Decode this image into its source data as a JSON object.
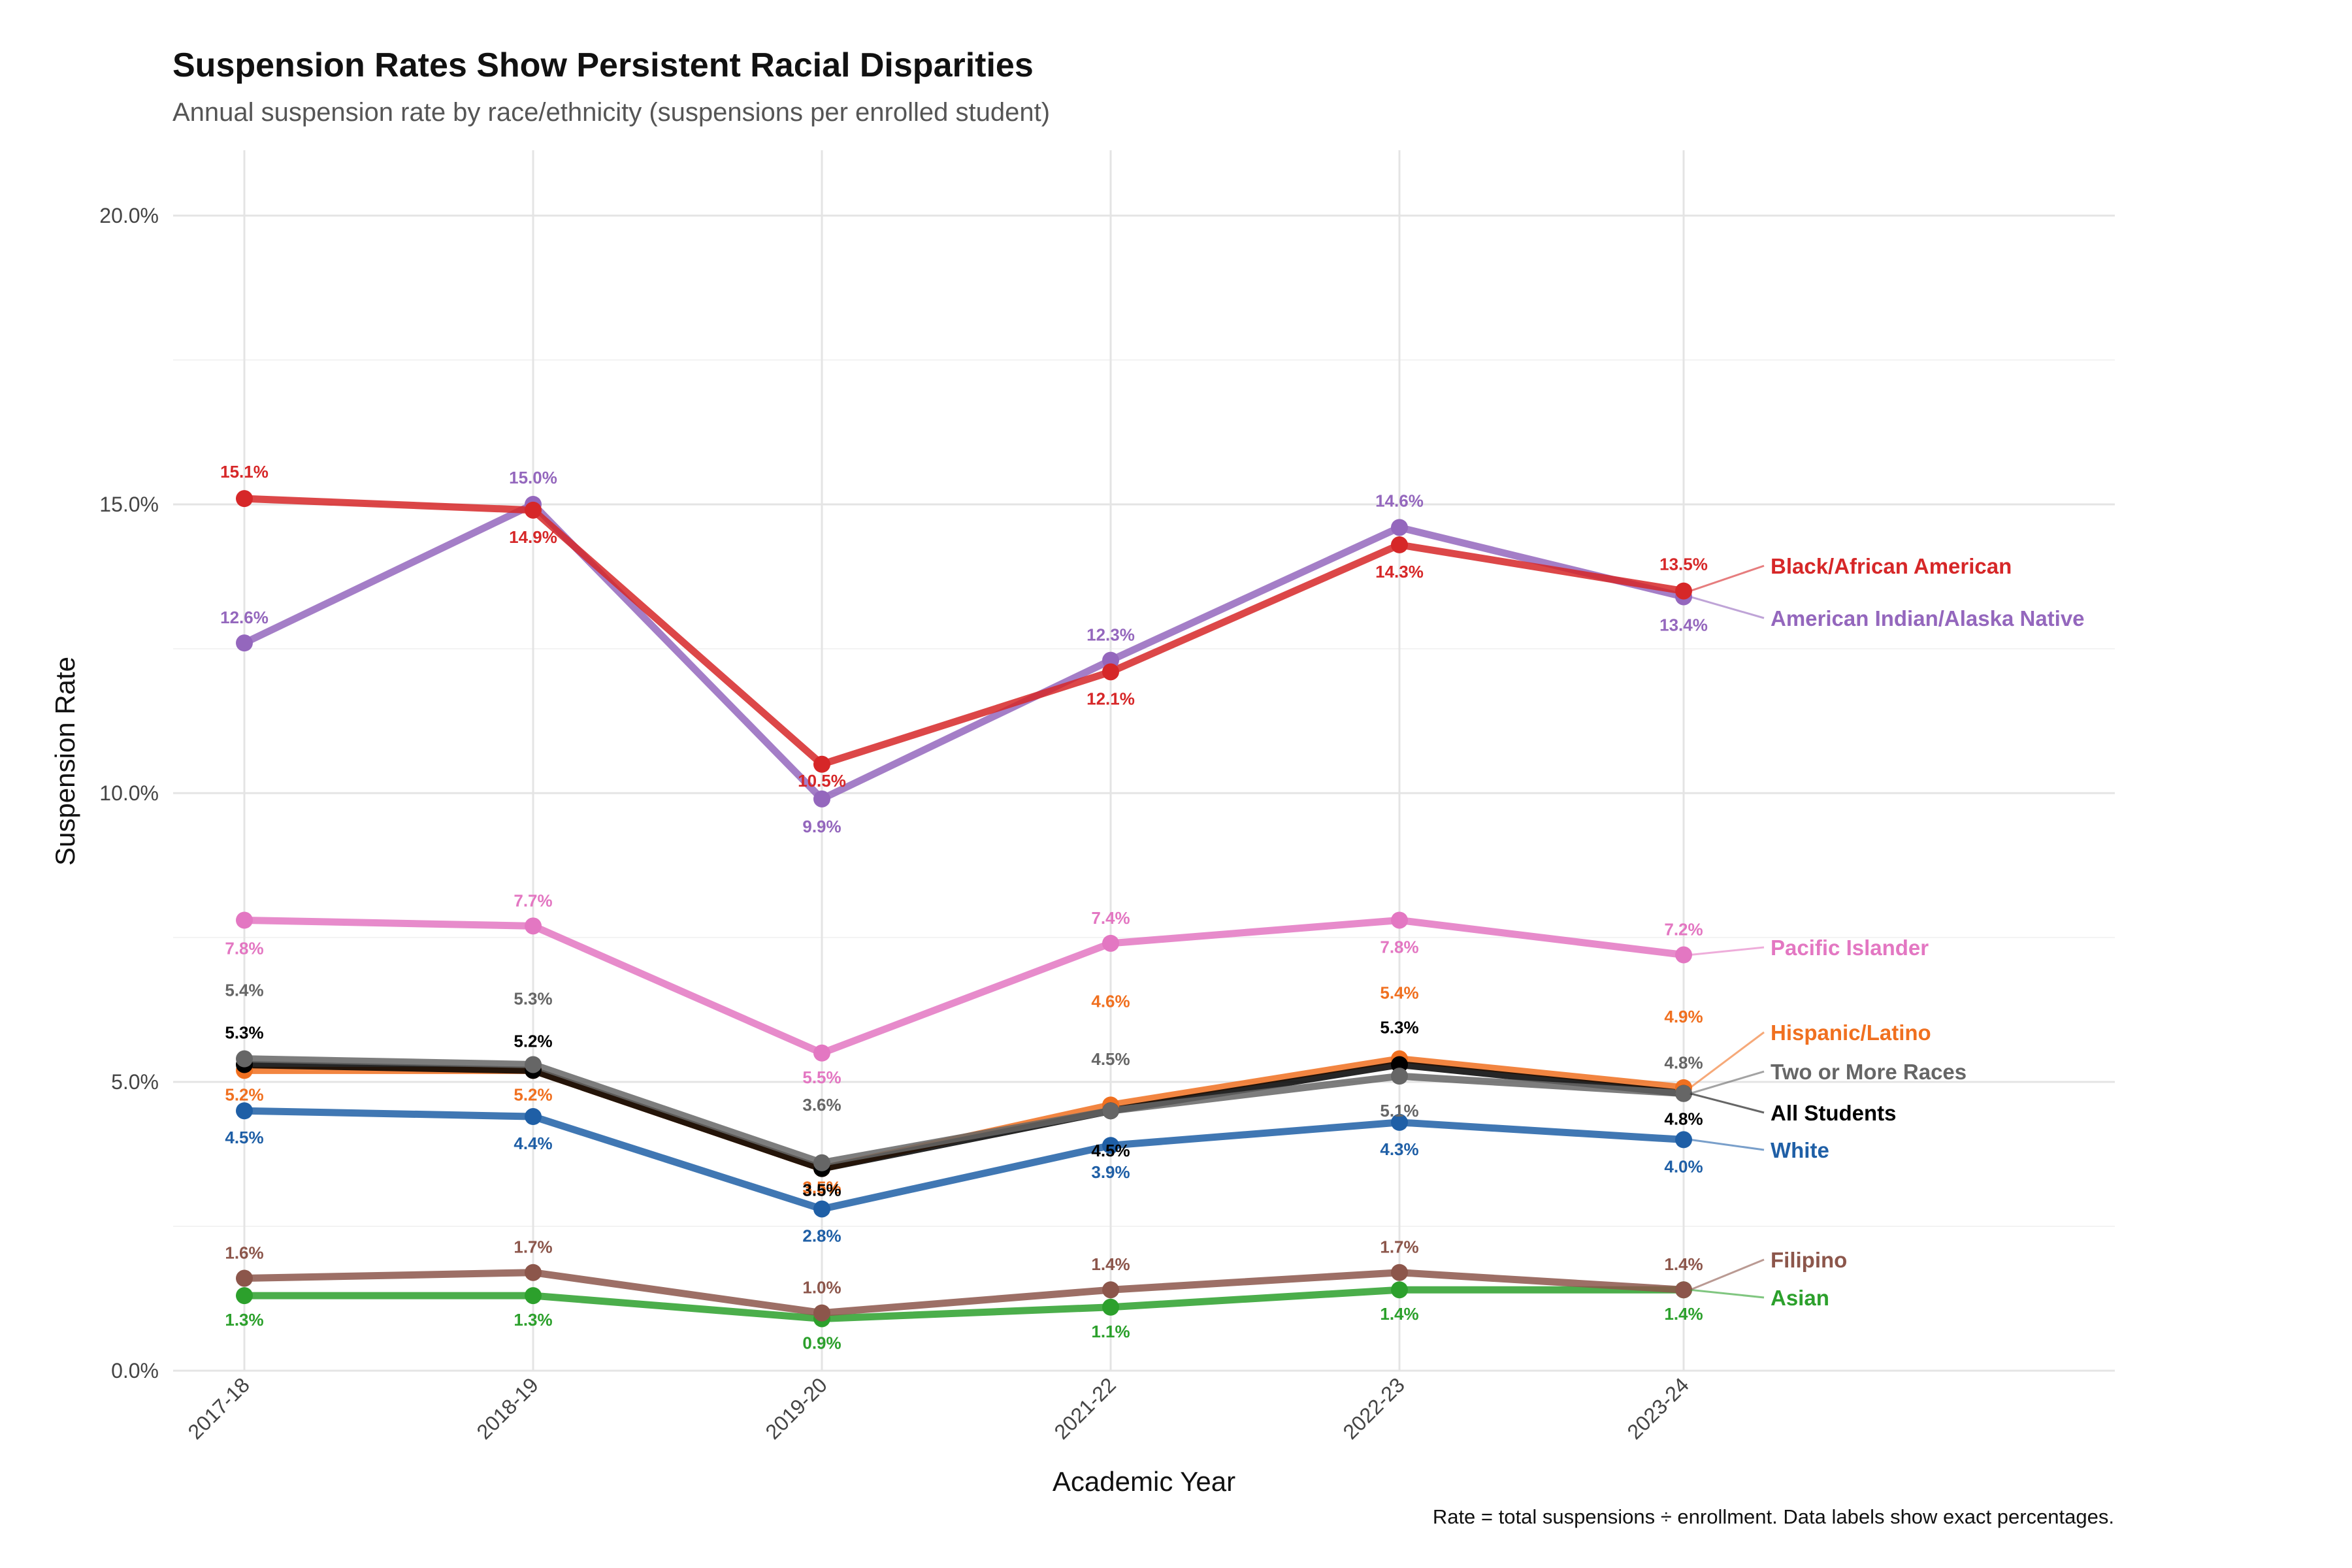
{
  "title": "Suspension Rates Show Persistent Racial Disparities",
  "subtitle": "Annual suspension rate by race/ethnicity (suspensions per enrolled student)",
  "caption": "Rate = total suspensions ÷ enrollment. Data labels show exact percentages.",
  "chart_data": {
    "type": "line",
    "xlabel": "Academic Year",
    "ylabel": "Suspension Rate",
    "categories": [
      "2017-18",
      "2018-19",
      "2019-20",
      "2021-22",
      "2022-23",
      "2023-24"
    ],
    "ylim": [
      0,
      20
    ],
    "yticks": [
      0,
      5,
      10,
      15,
      20
    ],
    "ytick_labels": [
      "0.0%",
      "5.0%",
      "10.0%",
      "15.0%",
      "20.0%"
    ],
    "grid": true,
    "legend": "direct labels at right end of lines",
    "series": [
      {
        "name": "Asian",
        "color": "#2CA02C",
        "values": [
          1.3,
          1.3,
          0.9,
          1.1,
          1.4,
          1.4
        ],
        "labels": [
          "1.3%",
          "1.3%",
          "0.9%",
          "1.1%",
          "1.4%",
          "1.4%"
        ]
      },
      {
        "name": "Filipino",
        "color": "#8C564B",
        "values": [
          1.6,
          1.7,
          1.0,
          1.4,
          1.7,
          1.4
        ],
        "labels": [
          "1.6%",
          "1.7%",
          "1.0%",
          "1.4%",
          "1.7%",
          "1.4%"
        ]
      },
      {
        "name": "White",
        "color": "#1F5FA6",
        "values": [
          4.5,
          4.4,
          2.8,
          3.9,
          4.3,
          4.0
        ],
        "labels": [
          "4.5%",
          "4.4%",
          "2.8%",
          "3.9%",
          "4.3%",
          "4.0%"
        ]
      },
      {
        "name": "Hispanic/Latino",
        "color": "#F07020",
        "values": [
          5.2,
          5.2,
          3.5,
          4.6,
          5.4,
          4.9
        ],
        "labels": [
          "5.2%",
          "5.2%",
          "3.5%",
          "4.6%",
          "5.4%",
          "4.9%"
        ]
      },
      {
        "name": "All Students",
        "color": "#000000",
        "values": [
          5.3,
          5.2,
          3.5,
          4.5,
          5.3,
          4.8
        ],
        "labels": [
          "5.3%",
          "5.2%",
          "3.5%",
          "4.5%",
          "5.3%",
          "4.8%"
        ]
      },
      {
        "name": "Two or More Races",
        "color": "#666666",
        "values": [
          5.4,
          5.3,
          3.6,
          4.5,
          5.1,
          4.8
        ],
        "labels": [
          "5.4%",
          "5.3%",
          "3.6%",
          "4.5%",
          "5.1%",
          "4.8%"
        ]
      },
      {
        "name": "Pacific Islander",
        "color": "#E377C2",
        "values": [
          7.8,
          7.7,
          5.5,
          7.4,
          7.8,
          7.2
        ],
        "labels": [
          "7.8%",
          "7.7%",
          "5.5%",
          "7.4%",
          "7.8%",
          "7.2%"
        ]
      },
      {
        "name": "American Indian/Alaska Native",
        "color": "#9467BD",
        "values": [
          12.6,
          15.0,
          9.9,
          12.3,
          14.6,
          13.4
        ],
        "labels": [
          "12.6%",
          "15.0%",
          "9.9%",
          "12.3%",
          "14.6%",
          "13.4%"
        ]
      },
      {
        "name": "Black/African American",
        "color": "#D62728",
        "values": [
          15.1,
          14.9,
          10.5,
          12.1,
          14.3,
          13.5
        ],
        "labels": [
          "15.1%",
          "14.9%",
          "10.5%",
          "12.1%",
          "14.3%",
          "13.5%"
        ]
      }
    ]
  }
}
